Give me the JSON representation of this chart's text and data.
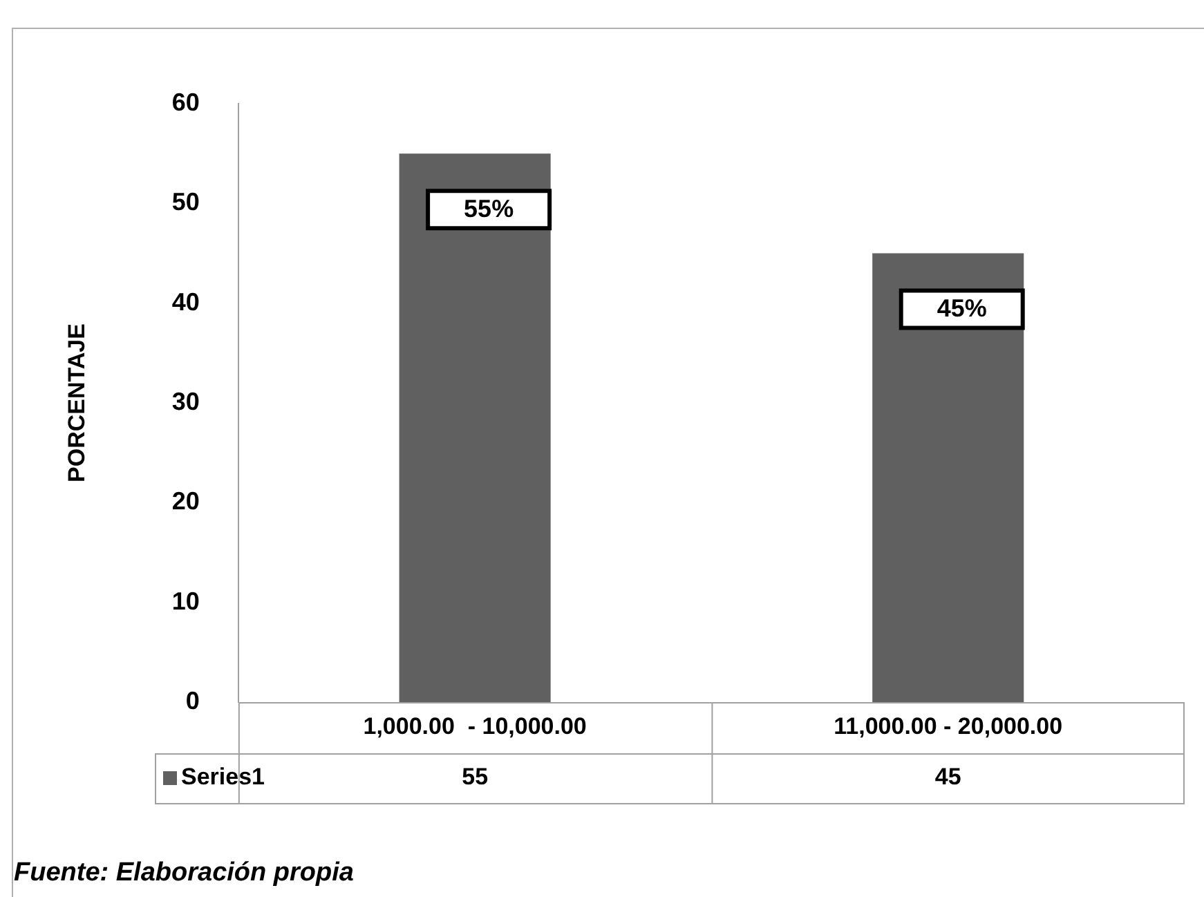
{
  "chart_data": {
    "type": "bar",
    "categories": [
      "1,000.00  - 10,000.00",
      "11,000.00 - 20,000.00"
    ],
    "series": [
      {
        "name": "Series1",
        "color": "#606060",
        "values": [
          55,
          45
        ]
      }
    ],
    "ylabel": "PORCENTAJE",
    "ylim": [
      0,
      60
    ],
    "yticks": [
      0,
      10,
      20,
      30,
      40,
      50,
      60
    ],
    "grid": false,
    "legend": "bottom",
    "data_labels": true,
    "annotations": [
      {
        "text": "55%",
        "x": "1,000.00  - 10,000.00",
        "y": 55
      },
      {
        "text": "45%",
        "x": "11,000.00 - 20,000.00",
        "y": 45
      },
      "Fuente: Elaboración propia"
    ]
  }
}
